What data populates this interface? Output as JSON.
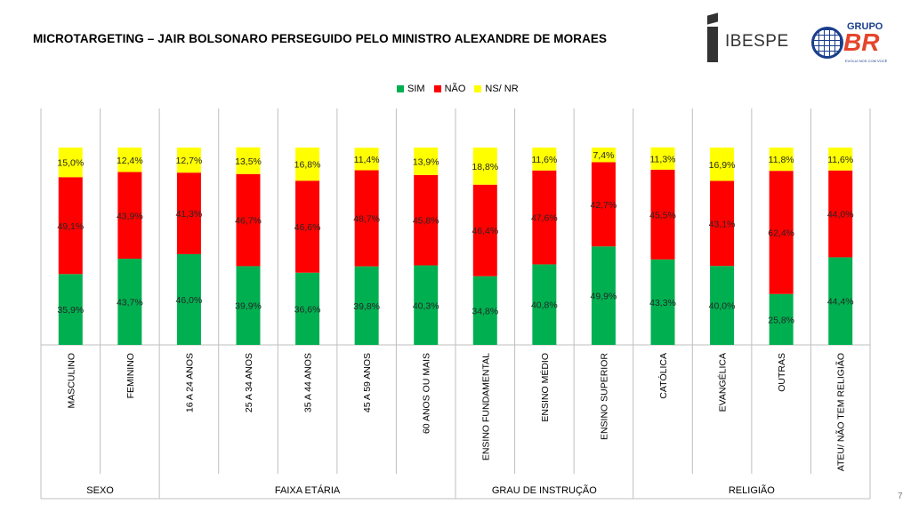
{
  "title": "MICROTARGETING – JAIR BOLSONARO PERSEGUIDO PELO MINISTRO ALEXANDRE DE MORAES",
  "logos": {
    "ibespe": "IBESPE",
    "grupo": "GRUPO",
    "br": "BR",
    "tagline": "EVOLUI NOS COM VOCÊ"
  },
  "page_number": "7",
  "colors": {
    "sim": "#00b050",
    "nao": "#ff0000",
    "ns": "#ffff00"
  },
  "chart_data": {
    "type": "bar",
    "stacked": true,
    "grid": false,
    "legend_position": "top",
    "ylim": [
      0,
      100
    ],
    "categories": [
      "MASCULINO",
      "FEMININO",
      "16 A 24 ANOS",
      "25 A 34 ANOS",
      "35 A 44 ANOS",
      "45 A 59 ANOS",
      "60 ANOS OU MAIS",
      "ENSINO FUNDAMENTAL",
      "ENSINO MÉDIO",
      "ENSINO SUPERIOR",
      "CATÓLICA",
      "EVANGÉLICA",
      "OUTRAS",
      "ATEU/ NÃO TEM RELIGIÃO"
    ],
    "groups": [
      {
        "name": "SEXO",
        "start": 0,
        "count": 2
      },
      {
        "name": "FAIXA ETÁRIA",
        "start": 2,
        "count": 5
      },
      {
        "name": "GRAU DE INSTRUÇÃO",
        "start": 7,
        "count": 3
      },
      {
        "name": "RELIGIÃO",
        "start": 10,
        "count": 4
      }
    ],
    "series": [
      {
        "name": "SIM",
        "values": [
          35.9,
          43.7,
          46.0,
          39.9,
          36.6,
          39.8,
          40.3,
          34.8,
          40.8,
          49.9,
          43.3,
          40.0,
          25.8,
          44.4
        ],
        "labels": [
          "35,9%",
          "43,7%",
          "46,0%",
          "39,9%",
          "36,6%",
          "39,8%",
          "40,3%",
          "34,8%",
          "40,8%",
          "49,9%",
          "43,3%",
          "40,0%",
          "25,8%",
          "44,4%"
        ]
      },
      {
        "name": "NÃO",
        "values": [
          49.1,
          43.9,
          41.3,
          46.7,
          46.6,
          48.7,
          45.8,
          46.4,
          47.6,
          42.7,
          45.5,
          43.1,
          62.4,
          44.0
        ],
        "labels": [
          "49,1%",
          "43,9%",
          "41,3%",
          "46,7%",
          "46,6%",
          "48,7%",
          "45,8%",
          "46,4%",
          "47,6%",
          "42,7%",
          "45,5%",
          "43,1%",
          "62,4%",
          "44,0%"
        ]
      },
      {
        "name": "NS/ NR",
        "values": [
          15.0,
          12.4,
          12.7,
          13.5,
          16.8,
          11.4,
          13.9,
          18.8,
          11.6,
          7.4,
          11.3,
          16.9,
          11.8,
          11.6
        ],
        "labels": [
          "15,0%",
          "12,4%",
          "12,7%",
          "13,5%",
          "16,8%",
          "11,4%",
          "13,9%",
          "18,8%",
          "11,6%",
          "7,4%",
          "11,3%",
          "16,9%",
          "11,8%",
          "11,6%"
        ]
      }
    ]
  }
}
